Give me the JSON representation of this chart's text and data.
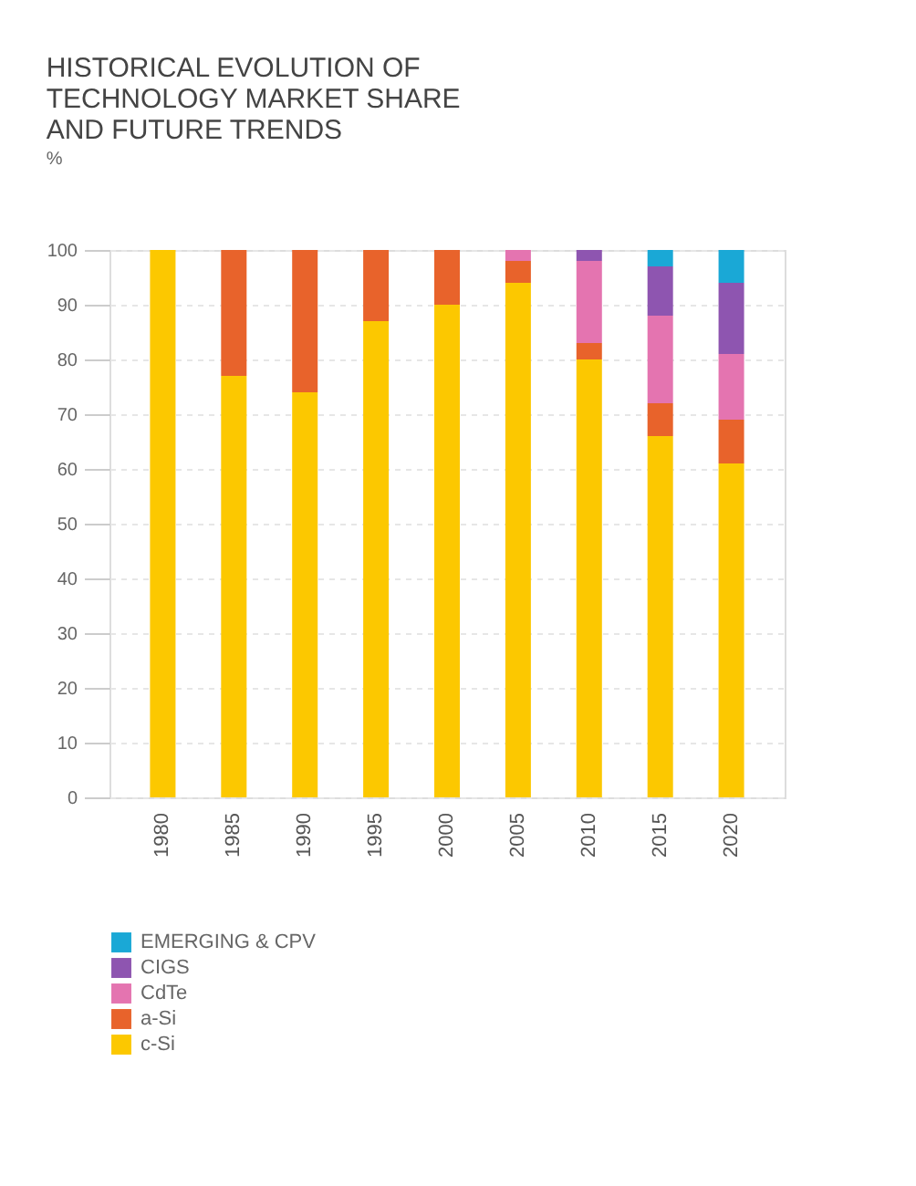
{
  "chart_data": {
    "type": "bar",
    "stacked": true,
    "title": "HISTORICAL EVOLUTION OF TECHNOLOGY MARKET SHARE AND FUTURE TRENDS",
    "ylabel": "%",
    "categories": [
      "1980",
      "1985",
      "1990",
      "1995",
      "2000",
      "2005",
      "2010",
      "2015",
      "2020"
    ],
    "series": [
      {
        "name": "c-Si",
        "color": "#fcc800",
        "values": [
          100,
          77,
          74,
          87,
          90,
          94,
          80,
          66,
          61
        ]
      },
      {
        "name": "a-Si",
        "color": "#e8632b",
        "values": [
          null,
          23,
          26,
          13,
          10,
          4,
          3,
          6,
          8
        ]
      },
      {
        "name": "CdTe",
        "color": "#e474b0",
        "values": [
          null,
          null,
          null,
          null,
          null,
          2,
          15,
          16,
          12
        ]
      },
      {
        "name": "CIGS",
        "color": "#8e55b0",
        "values": [
          null,
          null,
          null,
          null,
          null,
          null,
          2,
          9,
          13
        ]
      },
      {
        "name": "EMERGING & CPV",
        "color": "#1aa8d6",
        "values": [
          null,
          null,
          null,
          null,
          null,
          null,
          null,
          3,
          6
        ]
      }
    ],
    "ylim": [
      0,
      100
    ],
    "yticks": [
      0,
      10,
      20,
      30,
      40,
      50,
      60,
      70,
      80,
      90,
      100
    ],
    "grid": "y",
    "legend": "bottom left"
  }
}
